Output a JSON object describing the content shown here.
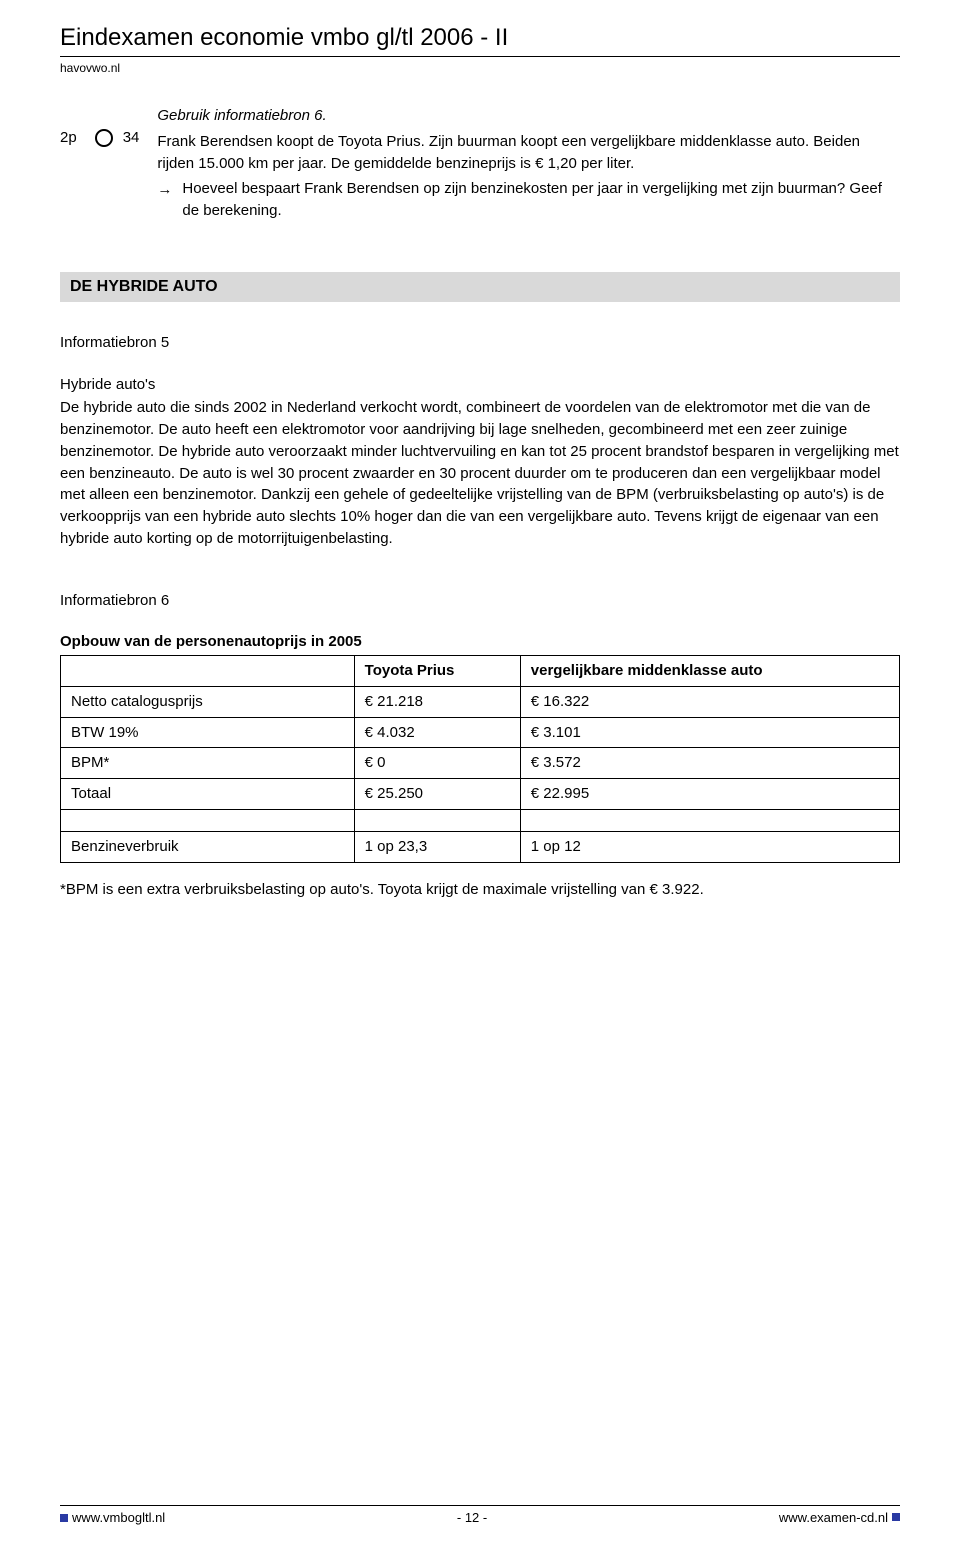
{
  "header": {
    "title": "Eindexamen economie vmbo gl/tl  2006 - II",
    "subtitle": "havovwo.nl"
  },
  "question": {
    "points": "2p",
    "number": "34",
    "intro_italic": "Gebruik informatiebron 6.",
    "body": "Frank Berendsen koopt de Toyota Prius. Zijn buurman koopt een vergelijkbare middenklasse auto. Beiden rijden 15.000 km per jaar. De gemiddelde benzineprijs is € 1,20 per liter.",
    "sub": "Hoeveel bespaart Frank Berendsen op zijn benzinekosten per jaar in vergelijking met zijn buurman? Geef de berekening."
  },
  "section_bar": "DE HYBRIDE AUTO",
  "info5": {
    "heading": "Informatiebron 5",
    "subheading": "Hybride auto's",
    "text": "De hybride auto die sinds 2002 in Nederland verkocht wordt, combineert de voordelen van de elektromotor met die van de benzinemotor. De auto heeft een elektromotor voor aandrijving bij lage snelheden, gecombineerd met een zeer zuinige benzinemotor. De hybride auto veroorzaakt minder luchtvervuiling en kan tot 25 procent brandstof besparen in vergelijking met een benzineauto. De auto is wel 30 procent zwaarder en 30 procent duurder om te produceren dan een vergelijkbaar model met alleen een benzinemotor. Dankzij een gehele of gedeeltelijke vrijstelling van de BPM (verbruiksbelasting op auto's) is de verkoopprijs van een hybride auto slechts 10% hoger dan die van een vergelijkbare auto. Tevens krijgt de eigenaar van een hybride auto korting op de motorrijtuigenbelasting."
  },
  "info6": {
    "heading": "Informatiebron 6",
    "table_title": "Opbouw van de personenautoprijs in 2005",
    "columns": [
      "",
      "Toyota Prius",
      "vergelijkbare middenklasse auto"
    ],
    "rows": [
      [
        "Netto catalogusprijs",
        "€ 21.218",
        "€ 16.322"
      ],
      [
        "BTW 19%",
        "€   4.032",
        "€   3.101"
      ],
      [
        "BPM*",
        "€          0",
        "€   3.572"
      ],
      [
        "Totaal",
        "€ 25.250",
        "€ 22.995"
      ]
    ],
    "rows2": [
      [
        "Benzineverbruik",
        "1 op 23,3",
        "1 op 12"
      ]
    ],
    "footnote": "*BPM is een extra verbruiksbelasting op auto's. Toyota krijgt de maximale vrijstelling van € 3.922."
  },
  "footer": {
    "left": "www.vmbogltl.nl",
    "center": "- 12 -",
    "right": "www.examen-cd.nl",
    "square_color": "#2a3aa3"
  }
}
